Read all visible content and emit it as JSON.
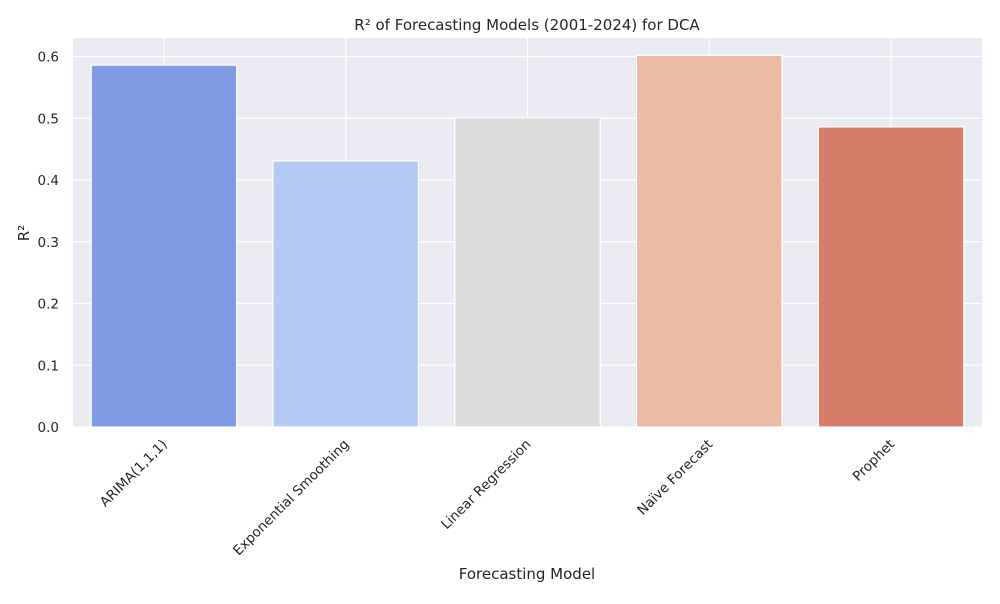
{
  "chart_data": {
    "type": "bar",
    "title": "R² of Forecasting Models (2001-2024) for DCA",
    "xlabel": "Forecasting Model",
    "ylabel": "R²",
    "categories": [
      "ARIMA(1,1,1)",
      "Exponential Smoothing",
      "Linear Regression",
      "Naïve Forecast",
      "Prophet"
    ],
    "values": [
      0.586,
      0.431,
      0.501,
      0.602,
      0.486
    ],
    "colors": [
      "#7f9be4",
      "#b4c9f3",
      "#dcdcdc",
      "#ebbaa3",
      "#d57e6b"
    ],
    "ylim": [
      0,
      0.63
    ],
    "yticks": [
      "0.0",
      "0.1",
      "0.2",
      "0.3",
      "0.4",
      "0.5",
      "0.6"
    ],
    "grid": true,
    "legend": "none",
    "background": "#eaeaf2",
    "xtick_rotation_deg": 45
  }
}
